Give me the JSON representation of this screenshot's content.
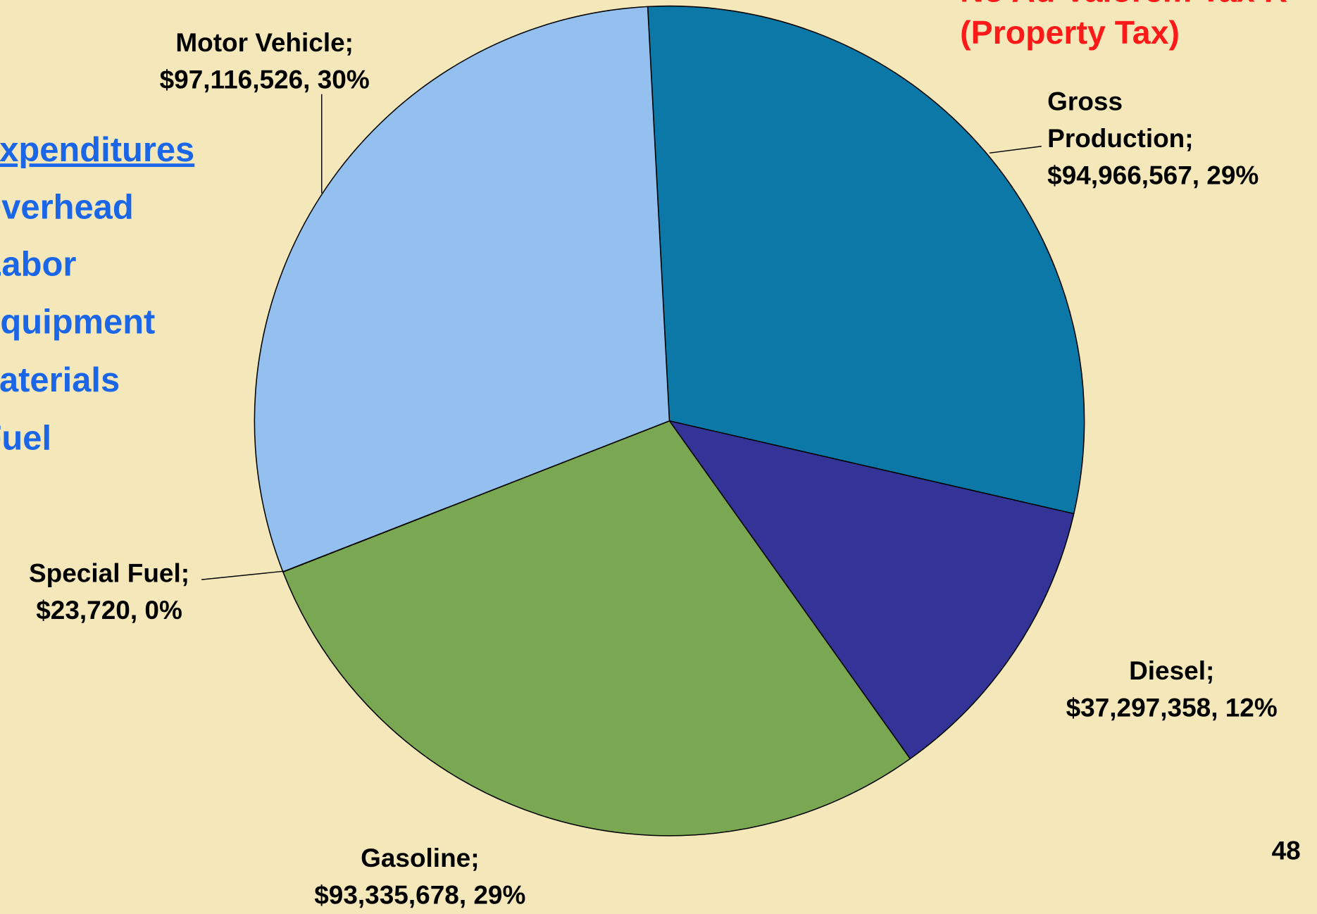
{
  "chart_data": {
    "type": "pie",
    "note_lines": [
      "No Ad Valorem Tax R",
      "(Property Tax)"
    ],
    "side_list": [
      "Expenditures",
      "Overhead",
      "Labor",
      "Equipment",
      "Materials",
      "Fuel"
    ],
    "page_number": "48",
    "categories": [
      "Gross Production",
      "Diesel",
      "Gasoline",
      "Special Fuel",
      "Motor Vehicle"
    ],
    "values": [
      94966567,
      37297358,
      93335678,
      23720,
      97116526
    ],
    "colors": [
      "#0b78a8",
      "#343397",
      "#7aa752",
      "#c9d9a0",
      "#93c0ee"
    ],
    "data_labels": [
      [
        "Gross",
        "Production;",
        "$94,966,567, 29%"
      ],
      [
        "Diesel;",
        "$37,297,358, 12%"
      ],
      [
        "Gasoline;",
        "$93,335,678, 29%"
      ],
      [
        "Special Fuel;",
        "$23,720, 0%"
      ],
      [
        "Motor Vehicle;",
        "$97,116,526, 30%"
      ]
    ]
  }
}
